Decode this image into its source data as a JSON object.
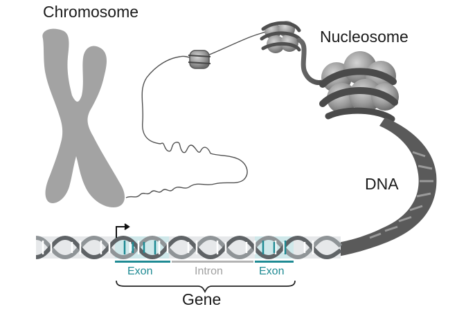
{
  "labels": {
    "chromosome": "Chromosome",
    "nucleosome": "Nucleosome",
    "dna": "DNA",
    "gene": "Gene",
    "exon_left": "Exon",
    "intron": "Intron",
    "exon_right": "Exon"
  },
  "colors": {
    "chromosome": "#a3a3a3",
    "dna_strand": "#4f4f4f",
    "histone": "#9c9c9c",
    "helix_light": "#b9bcbf",
    "helix_dark": "#5f6366",
    "exon": "#1e8a93",
    "intron": "#b3b3b3",
    "bracket": "#222222"
  }
}
